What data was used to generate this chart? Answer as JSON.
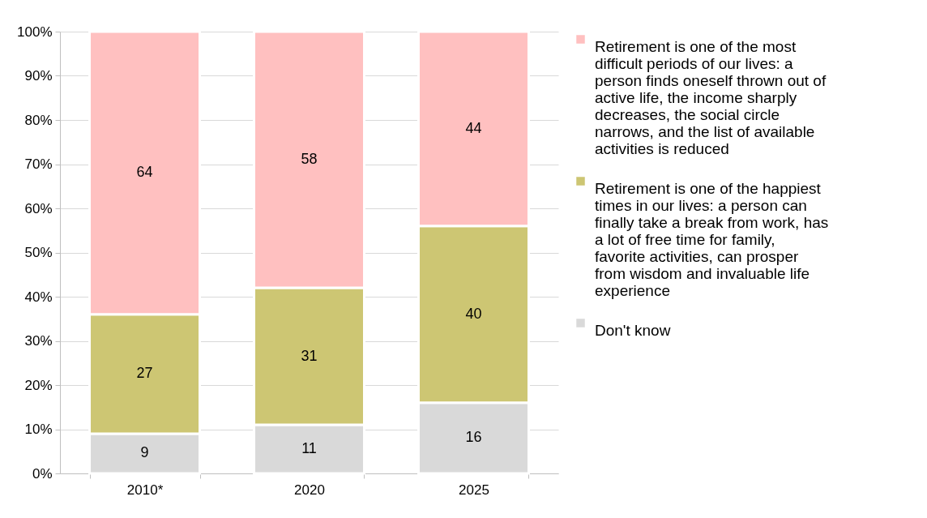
{
  "chart_data": {
    "type": "bar",
    "stacked": true,
    "categories": [
      "2010*",
      "2020",
      "2025"
    ],
    "series": [
      {
        "name": "Don't know",
        "color": "#d9d9d9",
        "values": [
          9,
          11,
          16
        ]
      },
      {
        "name": "Retirement is one of the happiest times in our lives: a person can finally take a break from work, has a lot of free time for family, favorite activities, can prosper from wisdom and invaluable life experience",
        "color": "#cdc673",
        "values": [
          27,
          31,
          40
        ]
      },
      {
        "name": "Retirement is one of the most difficult periods of our lives: a person finds oneself thrown out of active life, the income sharply decreases, the social circle narrows, and the list of available activities is reduced",
        "color": "#ffc0c0",
        "values": [
          64,
          58,
          44
        ]
      }
    ],
    "ylim": [
      0,
      100
    ],
    "yticks": [
      {
        "value": 0,
        "label": "0%"
      },
      {
        "value": 10,
        "label": "10%"
      },
      {
        "value": 20,
        "label": "20%"
      },
      {
        "value": 30,
        "label": "30%"
      },
      {
        "value": 40,
        "label": "40%"
      },
      {
        "value": 50,
        "label": "50%"
      },
      {
        "value": 60,
        "label": "60%"
      },
      {
        "value": 70,
        "label": "70%"
      },
      {
        "value": 80,
        "label": "80%"
      },
      {
        "value": 90,
        "label": "90%"
      },
      {
        "value": 100,
        "label": "100%"
      }
    ],
    "grid": "y",
    "legend": "right",
    "data_labels": true
  }
}
